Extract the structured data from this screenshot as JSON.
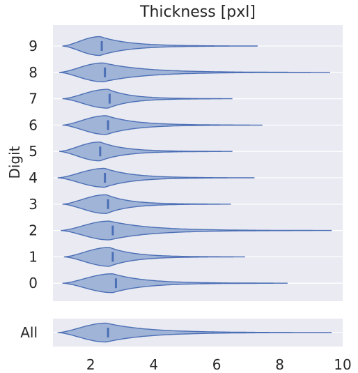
{
  "chart_data": {
    "type": "violin",
    "title": "Thickness [pxl]",
    "ylabel": "Digit",
    "xlim": [
      0.8,
      10
    ],
    "x_ticks": [
      2,
      4,
      6,
      8,
      10
    ],
    "grid": true,
    "colors": {
      "background": "#e9eaf2",
      "grid": "#ffffff",
      "fill": "#a0b4d8",
      "stroke": "#4c6fb5",
      "median": "#4c6fb5"
    },
    "violins": [
      {
        "category": "9",
        "min": 1.1,
        "max": 7.3,
        "median": 2.35,
        "peak": 2.3
      },
      {
        "category": "8",
        "min": 1.0,
        "max": 9.6,
        "median": 2.45,
        "peak": 2.4
      },
      {
        "category": "7",
        "min": 1.1,
        "max": 6.5,
        "median": 2.6,
        "peak": 2.55
      },
      {
        "category": "6",
        "min": 1.1,
        "max": 7.45,
        "median": 2.55,
        "peak": 2.5
      },
      {
        "category": "5",
        "min": 1.0,
        "max": 6.5,
        "median": 2.3,
        "peak": 2.3
      },
      {
        "category": "4",
        "min": 0.95,
        "max": 7.2,
        "median": 2.45,
        "peak": 2.45
      },
      {
        "category": "3",
        "min": 1.1,
        "max": 6.45,
        "median": 2.55,
        "peak": 2.5
      },
      {
        "category": "2",
        "min": 1.05,
        "max": 9.65,
        "median": 2.7,
        "peak": 2.6
      },
      {
        "category": "1",
        "min": 1.15,
        "max": 6.9,
        "median": 2.7,
        "peak": 2.6
      },
      {
        "category": "0",
        "min": 1.1,
        "max": 8.25,
        "median": 2.8,
        "peak": 2.7
      }
    ],
    "all": {
      "category": "All",
      "min": 0.95,
      "max": 9.65,
      "median": 2.55,
      "peak": 2.5
    }
  }
}
